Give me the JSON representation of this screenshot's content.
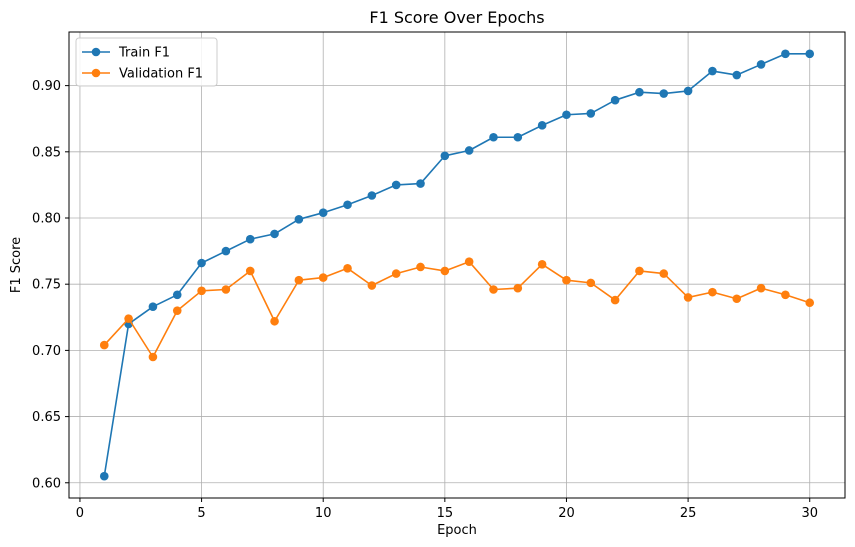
{
  "chart_data": {
    "type": "line",
    "title": "F1 Score Over Epochs",
    "xlabel": "Epoch",
    "ylabel": "F1 Score",
    "xlim": [
      -0.45,
      31.45
    ],
    "ylim": [
      0.5885,
      0.9405
    ],
    "xticks": [
      0,
      5,
      10,
      15,
      20,
      25,
      30
    ],
    "xtick_labels": [
      "0",
      "5",
      "10",
      "15",
      "20",
      "25",
      "30"
    ],
    "yticks": [
      0.6,
      0.65,
      0.7,
      0.75,
      0.8,
      0.85,
      0.9
    ],
    "ytick_labels": [
      "0.60",
      "0.65",
      "0.70",
      "0.75",
      "0.80",
      "0.85",
      "0.90"
    ],
    "grid": true,
    "legend_position": "top-left",
    "x": [
      1,
      2,
      3,
      4,
      5,
      6,
      7,
      8,
      9,
      10,
      11,
      12,
      13,
      14,
      15,
      16,
      17,
      18,
      19,
      20,
      21,
      22,
      23,
      24,
      25,
      26,
      27,
      28,
      29,
      30
    ],
    "series": [
      {
        "name": "Train F1",
        "color": "#1f77b4",
        "marker": "circle",
        "values": [
          0.605,
          0.72,
          0.733,
          0.742,
          0.766,
          0.775,
          0.784,
          0.788,
          0.799,
          0.804,
          0.81,
          0.817,
          0.825,
          0.826,
          0.847,
          0.851,
          0.861,
          0.861,
          0.87,
          0.878,
          0.879,
          0.889,
          0.895,
          0.894,
          0.896,
          0.911,
          0.908,
          0.916,
          0.924,
          0.924
        ]
      },
      {
        "name": "Validation F1",
        "color": "#ff7f0e",
        "marker": "circle",
        "values": [
          0.704,
          0.724,
          0.695,
          0.73,
          0.745,
          0.746,
          0.76,
          0.722,
          0.753,
          0.755,
          0.762,
          0.749,
          0.758,
          0.763,
          0.76,
          0.767,
          0.746,
          0.747,
          0.765,
          0.753,
          0.751,
          0.738,
          0.76,
          0.758,
          0.74,
          0.744,
          0.739,
          0.747,
          0.742,
          0.736
        ]
      }
    ]
  }
}
